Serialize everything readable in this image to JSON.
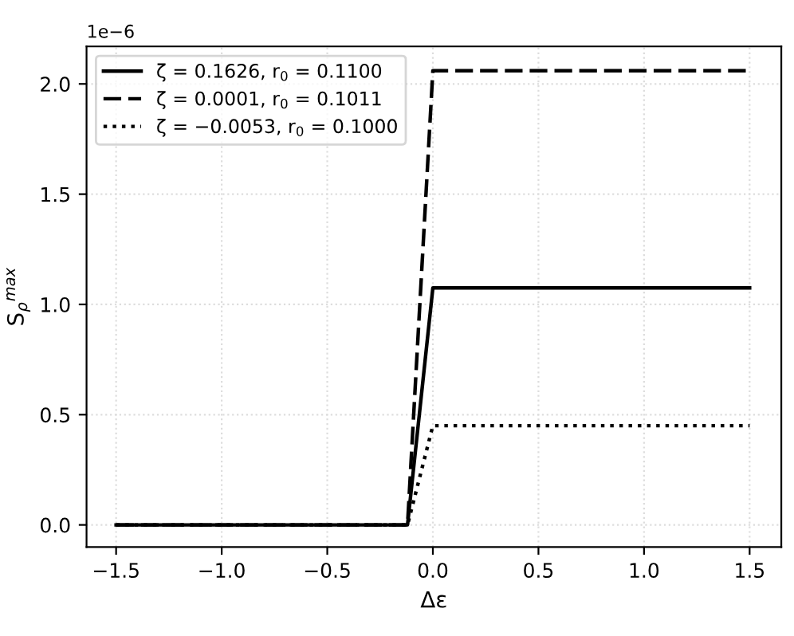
{
  "chart_data": {
    "type": "line",
    "xlabel": "Δε",
    "ylabel": "S$_{ρ}$$^{max}$",
    "annotations": [
      "1e−6"
    ],
    "x": [
      -1.5,
      -0.12,
      0.0,
      1.5
    ],
    "series": [
      {
        "name": "ζ = 0.1626, r$_{0}$ = 0.1100",
        "color": "#000000",
        "line_style": "solid",
        "values": [
          0,
          0,
          1.075,
          1.075
        ]
      },
      {
        "name": "ζ = 0.0001, r$_{0}$ = 0.1011",
        "color": "#000000",
        "line_style": "dashed",
        "values": [
          0,
          0,
          2.06,
          2.06
        ]
      },
      {
        "name": "ζ = −0.0053, r$_{0}$ = 0.1000",
        "color": "#000000",
        "line_style": "dotted",
        "values": [
          0,
          0,
          0.45,
          0.45
        ]
      }
    ],
    "xlim": [
      -1.64,
      1.65
    ],
    "ylim": [
      -0.1,
      2.17
    ],
    "xticks": [
      {
        "value": -1.5,
        "label": "−1.5"
      },
      {
        "value": -1.0,
        "label": "−1.0"
      },
      {
        "value": -0.5,
        "label": "−0.5"
      },
      {
        "value": 0.0,
        "label": "0.0"
      },
      {
        "value": 0.5,
        "label": "0.5"
      },
      {
        "value": 1.0,
        "label": "1.0"
      },
      {
        "value": 1.5,
        "label": "1.5"
      }
    ],
    "yticks": [
      {
        "value": 0.0,
        "label": "0.0"
      },
      {
        "value": 0.5,
        "label": "0.5"
      },
      {
        "value": 1.0,
        "label": "1.0"
      },
      {
        "value": 1.5,
        "label": "1.5"
      },
      {
        "value": 2.0,
        "label": "2.0"
      }
    ],
    "grid": true,
    "legend": "top left",
    "marker": "none"
  }
}
